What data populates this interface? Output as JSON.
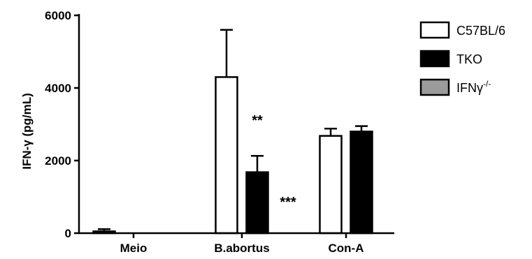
{
  "chart_data": {
    "type": "bar",
    "ylabel": "IFN-γ (pg/mL)",
    "ylim": [
      0,
      6000
    ],
    "yticks": [
      "0",
      "2000",
      "4000",
      "6000"
    ],
    "categories": [
      "Meio",
      "B.abortus",
      "Con-A"
    ],
    "series": [
      {
        "name": "C57BL/6",
        "values": [
          50,
          4300,
          2680
        ],
        "errors": [
          60,
          1300,
          200
        ],
        "fill": "#ffffff"
      },
      {
        "name": "TKO",
        "values": [
          0,
          1680,
          2800
        ],
        "errors": [
          0,
          450,
          150
        ],
        "fill": "#000000"
      },
      {
        "name": "IFNγ-/-",
        "name_base": "IFNγ",
        "name_sup": "-/-",
        "values": [
          0,
          0,
          0
        ],
        "errors": [
          0,
          0,
          0
        ],
        "fill": "#9b9b9b"
      }
    ],
    "annotations": [
      {
        "text": "**",
        "category": "B.abortus",
        "series": "TKO"
      },
      {
        "text": "***",
        "category": "B.abortus",
        "series": "IFNγ-/-"
      }
    ],
    "grid": false,
    "legend": "top-right"
  }
}
